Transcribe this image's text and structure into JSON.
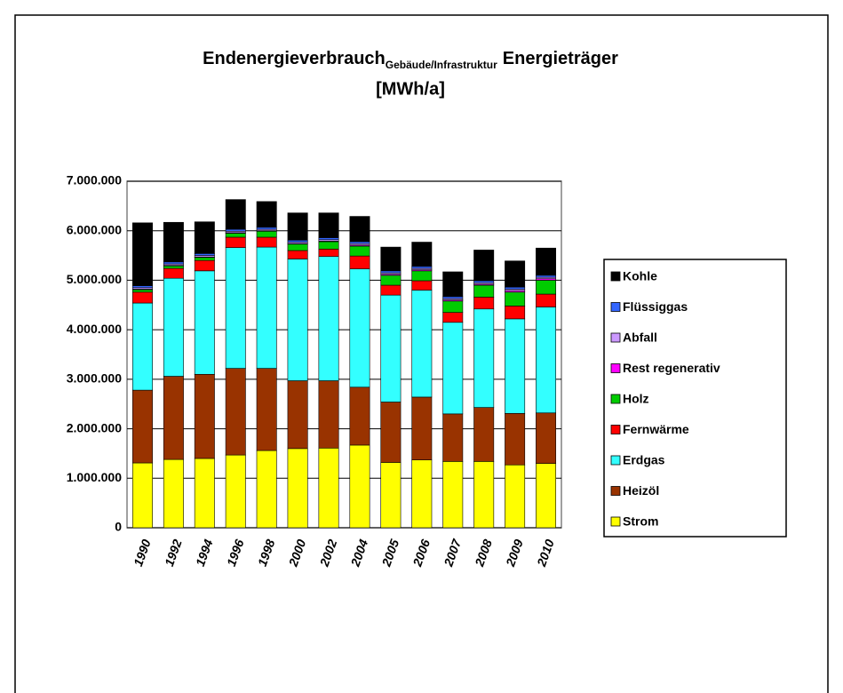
{
  "chart_data": {
    "type": "stacked_bar",
    "title": "Endenergieverbrauch",
    "title_subscript": "Gebäude/Infrastruktur",
    "title_suffix": "Energieträger",
    "subtitle": "[MWh/a]",
    "categories": [
      "1990",
      "1992",
      "1994",
      "1996",
      "1998",
      "2000",
      "2002",
      "2004",
      "2005",
      "2006",
      "2007",
      "2008",
      "2009",
      "2010"
    ],
    "series": [
      {
        "name": "Strom",
        "color": "#ffff00",
        "values": [
          1310000,
          1380000,
          1400000,
          1470000,
          1560000,
          1600000,
          1610000,
          1670000,
          1320000,
          1370000,
          1340000,
          1340000,
          1270000,
          1300000
        ]
      },
      {
        "name": "Heizöl",
        "color": "#993300",
        "values": [
          1470000,
          1680000,
          1700000,
          1750000,
          1660000,
          1370000,
          1360000,
          1170000,
          1220000,
          1270000,
          960000,
          1090000,
          1040000,
          1020000
        ]
      },
      {
        "name": "Erdgas",
        "color": "#33ffff",
        "values": [
          1760000,
          1980000,
          2090000,
          2440000,
          2450000,
          2460000,
          2510000,
          2390000,
          2160000,
          2160000,
          1850000,
          1990000,
          1910000,
          2140000
        ]
      },
      {
        "name": "Fernwärme",
        "color": "#ff0000",
        "values": [
          220000,
          200000,
          210000,
          210000,
          200000,
          170000,
          150000,
          260000,
          200000,
          190000,
          200000,
          240000,
          260000,
          260000
        ]
      },
      {
        "name": "Holz",
        "color": "#00cc00",
        "values": [
          50000,
          50000,
          60000,
          80000,
          120000,
          130000,
          150000,
          200000,
          200000,
          200000,
          230000,
          240000,
          280000,
          280000
        ]
      },
      {
        "name": "Rest regenerativ",
        "color": "#ff00ff",
        "values": [
          10000,
          10000,
          10000,
          10000,
          10000,
          10000,
          10000,
          20000,
          20000,
          20000,
          20000,
          20000,
          30000,
          30000
        ]
      },
      {
        "name": "Abfall",
        "color": "#cc99ff",
        "values": [
          30000,
          30000,
          30000,
          30000,
          30000,
          30000,
          30000,
          30000,
          30000,
          30000,
          30000,
          30000,
          30000,
          30000
        ]
      },
      {
        "name": "Flüssiggas",
        "color": "#3366ff",
        "values": [
          40000,
          40000,
          40000,
          40000,
          40000,
          40000,
          40000,
          40000,
          40000,
          40000,
          40000,
          40000,
          40000,
          40000
        ]
      },
      {
        "name": "Kohle",
        "color": "#000000",
        "values": [
          1270000,
          800000,
          640000,
          600000,
          520000,
          550000,
          500000,
          510000,
          480000,
          490000,
          500000,
          620000,
          530000,
          550000
        ]
      }
    ],
    "ylim": [
      0,
      7000000
    ],
    "yticks": [
      0,
      {
        "value": 1000000,
        "label": "1.000.000"
      },
      {
        "value": 2000000,
        "label": "2.000.000"
      },
      {
        "value": 3000000,
        "label": "3.000.000"
      },
      {
        "value": 4000000,
        "label": "4.000.000"
      },
      {
        "value": 5000000,
        "label": "5.000.000"
      },
      {
        "value": 6000000,
        "label": "6.000.000"
      },
      {
        "value": 7000000,
        "label": "7.000.000"
      }
    ],
    "grid": true,
    "legend": "right"
  }
}
